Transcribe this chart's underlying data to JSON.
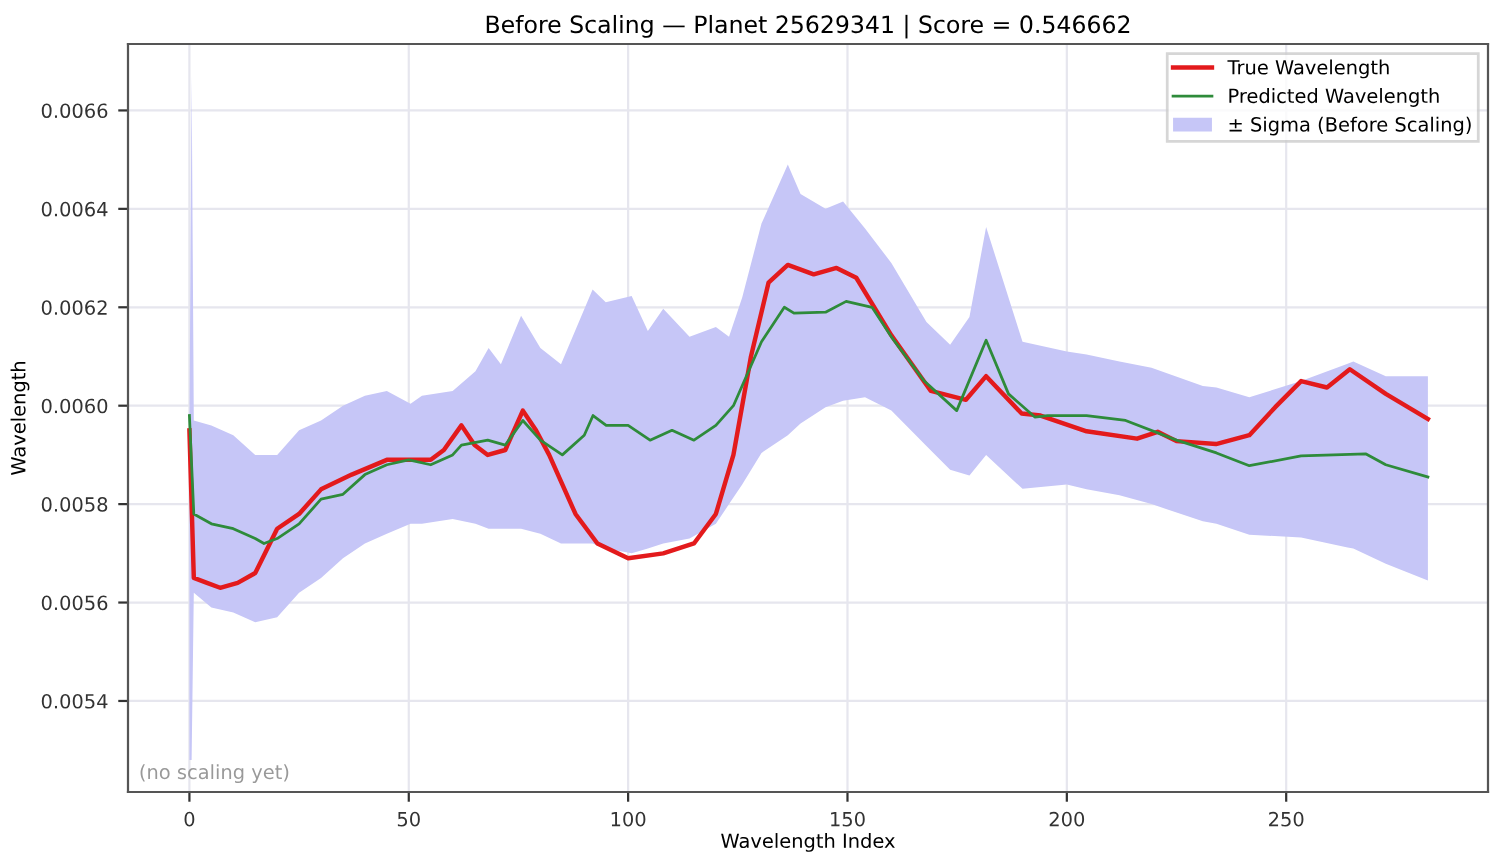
{
  "chart_data": {
    "type": "line",
    "title": "Before Scaling — Planet 25629341 | Score = 0.546662",
    "xlabel": "Wavelength Index",
    "ylabel": "Wavelength",
    "xlim": [
      -14,
      296
    ],
    "ylim": [
      0.005215,
      0.006735
    ],
    "xticks": [
      0,
      50,
      100,
      150,
      200,
      250
    ],
    "yticks": [
      {
        "value": 0.0054,
        "label": "0.0054"
      },
      {
        "value": 0.0056,
        "label": "0.0056"
      },
      {
        "value": 0.0058,
        "label": "0.0058"
      },
      {
        "value": 0.006,
        "label": "0.0060"
      },
      {
        "value": 0.0062,
        "label": "0.0062"
      },
      {
        "value": 0.0064,
        "label": "0.0064"
      },
      {
        "value": 0.0066,
        "label": "0.0066"
      }
    ],
    "grid": true,
    "legend": "top right",
    "line_style": "solid",
    "marker": "none",
    "annotations": [
      "(no scaling yet)"
    ],
    "series": [
      {
        "name": "True Wavelength",
        "color": "#e31a1c",
        "x": [
          0,
          1,
          4,
          7,
          11,
          15,
          20,
          25,
          30,
          37,
          45,
          50,
          55,
          58,
          62,
          65,
          68,
          72,
          76,
          79,
          82,
          88,
          93,
          100,
          108,
          115,
          120,
          124,
          128,
          132,
          136.4,
          142.3,
          147.5,
          152,
          160,
          169,
          177,
          181.6,
          189.7,
          194,
          204.5,
          216,
          220.7,
          225,
          234,
          241.6,
          247.5,
          253.4,
          259.3,
          264.5,
          272.7,
          282.3
        ],
        "values": [
          0.00595,
          0.00565,
          0.00564,
          0.00563,
          0.00564,
          0.00566,
          0.00575,
          0.00578,
          0.00583,
          0.00586,
          0.00589,
          0.00589,
          0.00589,
          0.00591,
          0.00596,
          0.00592,
          0.0059,
          0.00591,
          0.00599,
          0.00595,
          0.0059,
          0.00578,
          0.00572,
          0.00569,
          0.0057,
          0.00572,
          0.00578,
          0.0059,
          0.0061,
          0.00625,
          0.006286,
          0.006267,
          0.00628,
          0.00626,
          0.006143,
          0.00603,
          0.006012,
          0.00606,
          0.005984,
          0.00598,
          0.005948,
          0.005933,
          0.005947,
          0.005928,
          0.005922,
          0.00594,
          0.005997,
          0.00605,
          0.006037,
          0.006074,
          0.006024,
          0.005973
        ]
      },
      {
        "name": "Predicted Wavelength",
        "color": "#2e8b3a",
        "x": [
          0,
          1,
          5,
          10,
          15,
          17,
          20,
          25,
          30,
          35,
          40,
          45,
          50,
          55,
          60,
          62,
          68,
          72,
          76,
          80,
          85,
          90,
          92,
          95,
          100,
          105,
          110,
          115,
          120,
          124,
          130.4,
          135.6,
          137.8,
          145,
          149.7,
          155.6,
          160,
          167.5,
          174.9,
          181.6,
          186.7,
          192.7,
          195.6,
          204.5,
          213.4,
          225,
          234.1,
          241.6,
          253.4,
          260.8,
          268.2,
          272.7,
          282.3
        ],
        "values": [
          0.00598,
          0.00578,
          0.00576,
          0.00575,
          0.00573,
          0.00572,
          0.00573,
          0.00576,
          0.00581,
          0.00582,
          0.00586,
          0.00588,
          0.00589,
          0.00588,
          0.0059,
          0.00592,
          0.00593,
          0.00592,
          0.00597,
          0.00593,
          0.0059,
          0.00594,
          0.00598,
          0.00596,
          0.00596,
          0.00593,
          0.00595,
          0.00593,
          0.00596,
          0.006,
          0.00613,
          0.0062,
          0.006188,
          0.00619,
          0.006212,
          0.0062,
          0.00614,
          0.00605,
          0.00599,
          0.006133,
          0.006024,
          0.005977,
          0.00598,
          0.00598,
          0.00597,
          0.00593,
          0.005904,
          0.005878,
          0.005898,
          0.0059,
          0.005902,
          0.00588,
          0.005855
        ]
      },
      {
        "name": "± Sigma (Before Scaling)",
        "type": "area",
        "color": "#c6c6f7",
        "x": [
          0,
          0.5,
          1,
          5,
          10,
          15,
          20,
          25,
          30,
          35,
          40,
          45,
          50.4,
          53,
          60,
          65.2,
          68.2,
          71,
          75.6,
          80,
          84.7,
          91.9,
          94.9,
          100.8,
          104.5,
          108,
          114,
          120,
          123,
          126,
          130.4,
          136.4,
          139.3,
          145,
          149,
          154,
          160,
          168,
          173.4,
          177.8,
          181.6,
          189.9,
          200,
          204.5,
          212,
          219.3,
          231,
          234.1,
          241.6,
          253.4,
          264,
          265.3,
          272.7,
          282.3
        ],
        "lower": [
          0.00528,
          0.00528,
          0.00562,
          0.00559,
          0.00558,
          0.00556,
          0.00557,
          0.00562,
          0.00565,
          0.00569,
          0.00572,
          0.00574,
          0.00576,
          0.00576,
          0.00577,
          0.00576,
          0.00575,
          0.00575,
          0.00575,
          0.00574,
          0.00572,
          0.00572,
          0.00571,
          0.0057,
          0.00571,
          0.00572,
          0.00573,
          0.00576,
          0.0058,
          0.00584,
          0.005904,
          0.00594,
          0.005964,
          0.005997,
          0.00601,
          0.006017,
          0.00599,
          0.005918,
          0.00587,
          0.005858,
          0.0059,
          0.005831,
          0.00584,
          0.00583,
          0.005818,
          0.0058,
          0.005765,
          0.00576,
          0.005738,
          0.005732,
          0.005712,
          0.00571,
          0.005679,
          0.005645
        ],
        "values": [
          null,
          null,
          null,
          null,
          null,
          null,
          null,
          null,
          null,
          null,
          null,
          null,
          null,
          null,
          null,
          null,
          null,
          null,
          null,
          null,
          null,
          null,
          null,
          null,
          null,
          null,
          null,
          null,
          null,
          null,
          null,
          null,
          null,
          null,
          null,
          null,
          null,
          null,
          null,
          null,
          null,
          null,
          null,
          null,
          null,
          null,
          null,
          null,
          null,
          null,
          null,
          null,
          null,
          null
        ],
        "upper": [
          0.00595,
          0.00667,
          0.00597,
          0.00596,
          0.00594,
          0.0059,
          0.0059,
          0.00595,
          0.00597,
          0.006,
          0.00602,
          0.00603,
          0.006004,
          0.00602,
          0.00603,
          0.00607,
          0.006117,
          0.006084,
          0.006183,
          0.006117,
          0.006084,
          0.006236,
          0.00621,
          0.006223,
          0.006152,
          0.006197,
          0.00614,
          0.00616,
          0.00614,
          0.00622,
          0.00637,
          0.00649,
          0.00643,
          0.0064,
          0.006415,
          0.00636,
          0.00629,
          0.00617,
          0.006124,
          0.00618,
          0.006363,
          0.00613,
          0.00611,
          0.006104,
          0.00609,
          0.006077,
          0.00604,
          0.006037,
          0.006017,
          0.00605,
          0.006085,
          0.00609,
          0.00606,
          0.00606
        ]
      }
    ]
  }
}
